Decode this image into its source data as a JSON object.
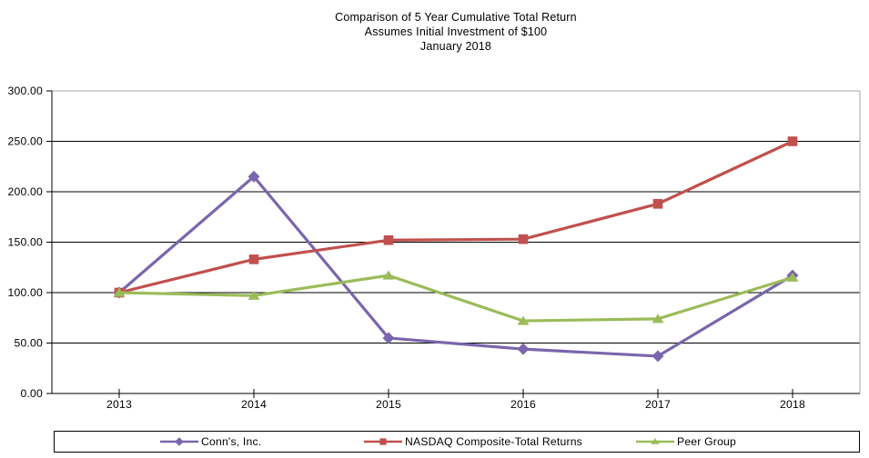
{
  "chart_data": {
    "type": "line",
    "title": "Comparison of 5 Year Cumulative Total Return",
    "subtitle": "Assumes Initial Investment of $100",
    "date_line": "January 2018",
    "categories": [
      "2013",
      "2014",
      "2015",
      "2016",
      "2017",
      "2018"
    ],
    "series": [
      {
        "name": "Conn's, Inc.",
        "marker": "diamond",
        "color": "#7A66AC",
        "values": [
          100,
          215,
          55,
          44,
          37,
          117
        ]
      },
      {
        "name": "NASDAQ Composite-Total Returns",
        "marker": "square",
        "color": "#C0504D",
        "values": [
          100,
          133,
          152,
          153,
          188,
          250
        ]
      },
      {
        "name": "Peer Group",
        "marker": "triangle",
        "color": "#9BBB59",
        "values": [
          100,
          97,
          117,
          72,
          74,
          115
        ]
      }
    ],
    "ylim": [
      0,
      300
    ],
    "y_tick_step": 50,
    "y_tick_labels": [
      "0.00",
      "50.00",
      "100.00",
      "150.00",
      "200.00",
      "250.00",
      "300.00"
    ],
    "grid": true,
    "legend_position": "bottom",
    "colors": {
      "axis": "#000000",
      "gridline": "#000000",
      "plot_border": "#A6A6A6",
      "background": "#FFFFFF",
      "text": "#000000"
    }
  }
}
